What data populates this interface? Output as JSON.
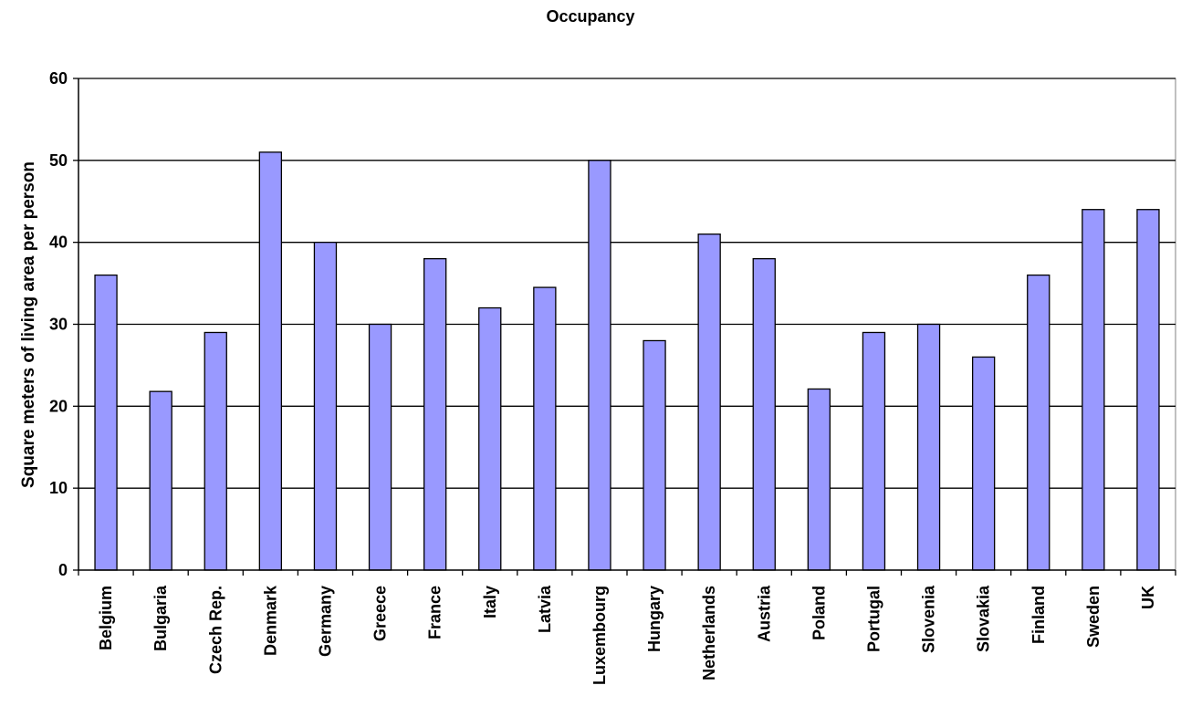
{
  "chart_data": {
    "type": "bar",
    "title": "Occupancy",
    "xlabel": "",
    "ylabel": "Square meters of living area per person",
    "ylim": [
      0,
      60
    ],
    "yticks": [
      0,
      10,
      20,
      30,
      40,
      50,
      60
    ],
    "grid": true,
    "legend": "none",
    "colors": {
      "bar_fill": "#9999ff",
      "bar_stroke": "#000000",
      "gridline": "#000000",
      "axis": "#000000",
      "plot_background": "#ffffff"
    },
    "categories": [
      "Belgium",
      "Bulgaria",
      "Czech Rep.",
      "Denmark",
      "Germany",
      "Greece",
      "France",
      "Italy",
      "Latvia",
      "Luxembourg",
      "Hungary",
      "Netherlands",
      "Austria",
      "Poland",
      "Portugal",
      "Slovenia",
      "Slovakia",
      "Finland",
      "Sweden",
      "UK"
    ],
    "values": [
      36,
      21.8,
      29,
      51,
      40,
      30,
      38,
      32,
      34.5,
      50,
      28,
      41,
      38,
      22.1,
      29,
      30,
      26,
      36,
      44,
      44
    ]
  }
}
